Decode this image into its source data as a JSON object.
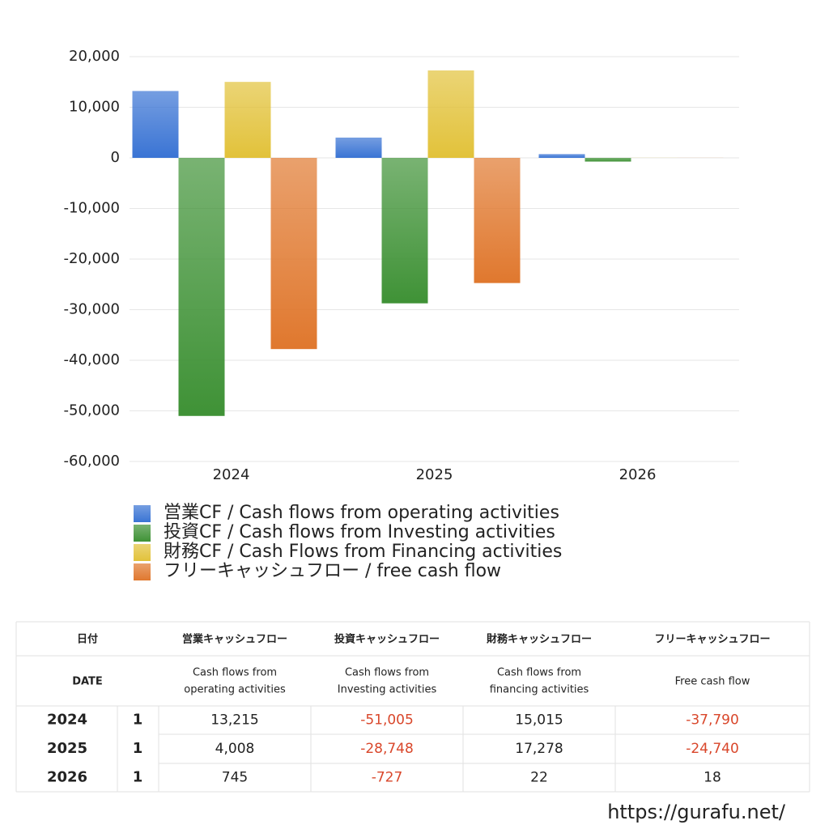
{
  "chart_data": {
    "type": "bar",
    "categories": [
      "2024",
      "2025",
      "2026"
    ],
    "series": [
      {
        "name": "営業CF / Cash flows from operating activities",
        "color": "#3a74d4",
        "values": [
          13215,
          4008,
          745
        ]
      },
      {
        "name": "投資CF / Cash flows from Investing activities",
        "color": "#3f9236",
        "values": [
          -51005,
          -28748,
          -727
        ]
      },
      {
        "name": "財務CF / Cash Flows from Financing activities",
        "color": "#e2c23a",
        "values": [
          15015,
          17278,
          22
        ]
      },
      {
        "name": "フリーキャッシュフロー / free cash flow",
        "color": "#e0782e",
        "values": [
          -37790,
          -24740,
          18
        ]
      }
    ],
    "ylim": [
      -60000,
      20000
    ],
    "yticks": [
      {
        "value": -60000,
        "label": "-60,000"
      },
      {
        "value": -50000,
        "label": "-50,000"
      },
      {
        "value": -40000,
        "label": "-40,000"
      },
      {
        "value": -30000,
        "label": "-30,000"
      },
      {
        "value": -20000,
        "label": "-20,000"
      },
      {
        "value": -10000,
        "label": "-10,000"
      },
      0,
      {
        "value": 10000,
        "label": "10,000"
      },
      {
        "value": 20000,
        "label": "20,000"
      }
    ],
    "grid": true
  },
  "table": {
    "header": [
      {
        "ja": "日付",
        "en": "DATE"
      },
      {
        "ja": "営業キャッシュフロー",
        "en": [
          "Cash flows from",
          "operating activities"
        ]
      },
      {
        "ja": "投資キャッシュフロー",
        "en": [
          "Cash flows from",
          "Investing activities"
        ]
      },
      {
        "ja": "財務キャッシュフロー",
        "en": [
          "Cash flows from",
          "financing activities"
        ]
      },
      {
        "ja": "フリーキャッシュフロー",
        "en": [
          "Free cash flow"
        ]
      }
    ],
    "rows": [
      {
        "date": "2024",
        "n": "1",
        "cells": [
          "13,215",
          "-51,005",
          "15,015",
          "-37,790"
        ]
      },
      {
        "date": "2025",
        "n": "1",
        "cells": [
          "4,008",
          "-28,748",
          "17,278",
          "-24,740"
        ]
      },
      {
        "date": "2026",
        "n": "1",
        "cells": [
          "745",
          "-727",
          "22",
          "18"
        ]
      }
    ]
  },
  "footer": "https://gurafu.net/"
}
